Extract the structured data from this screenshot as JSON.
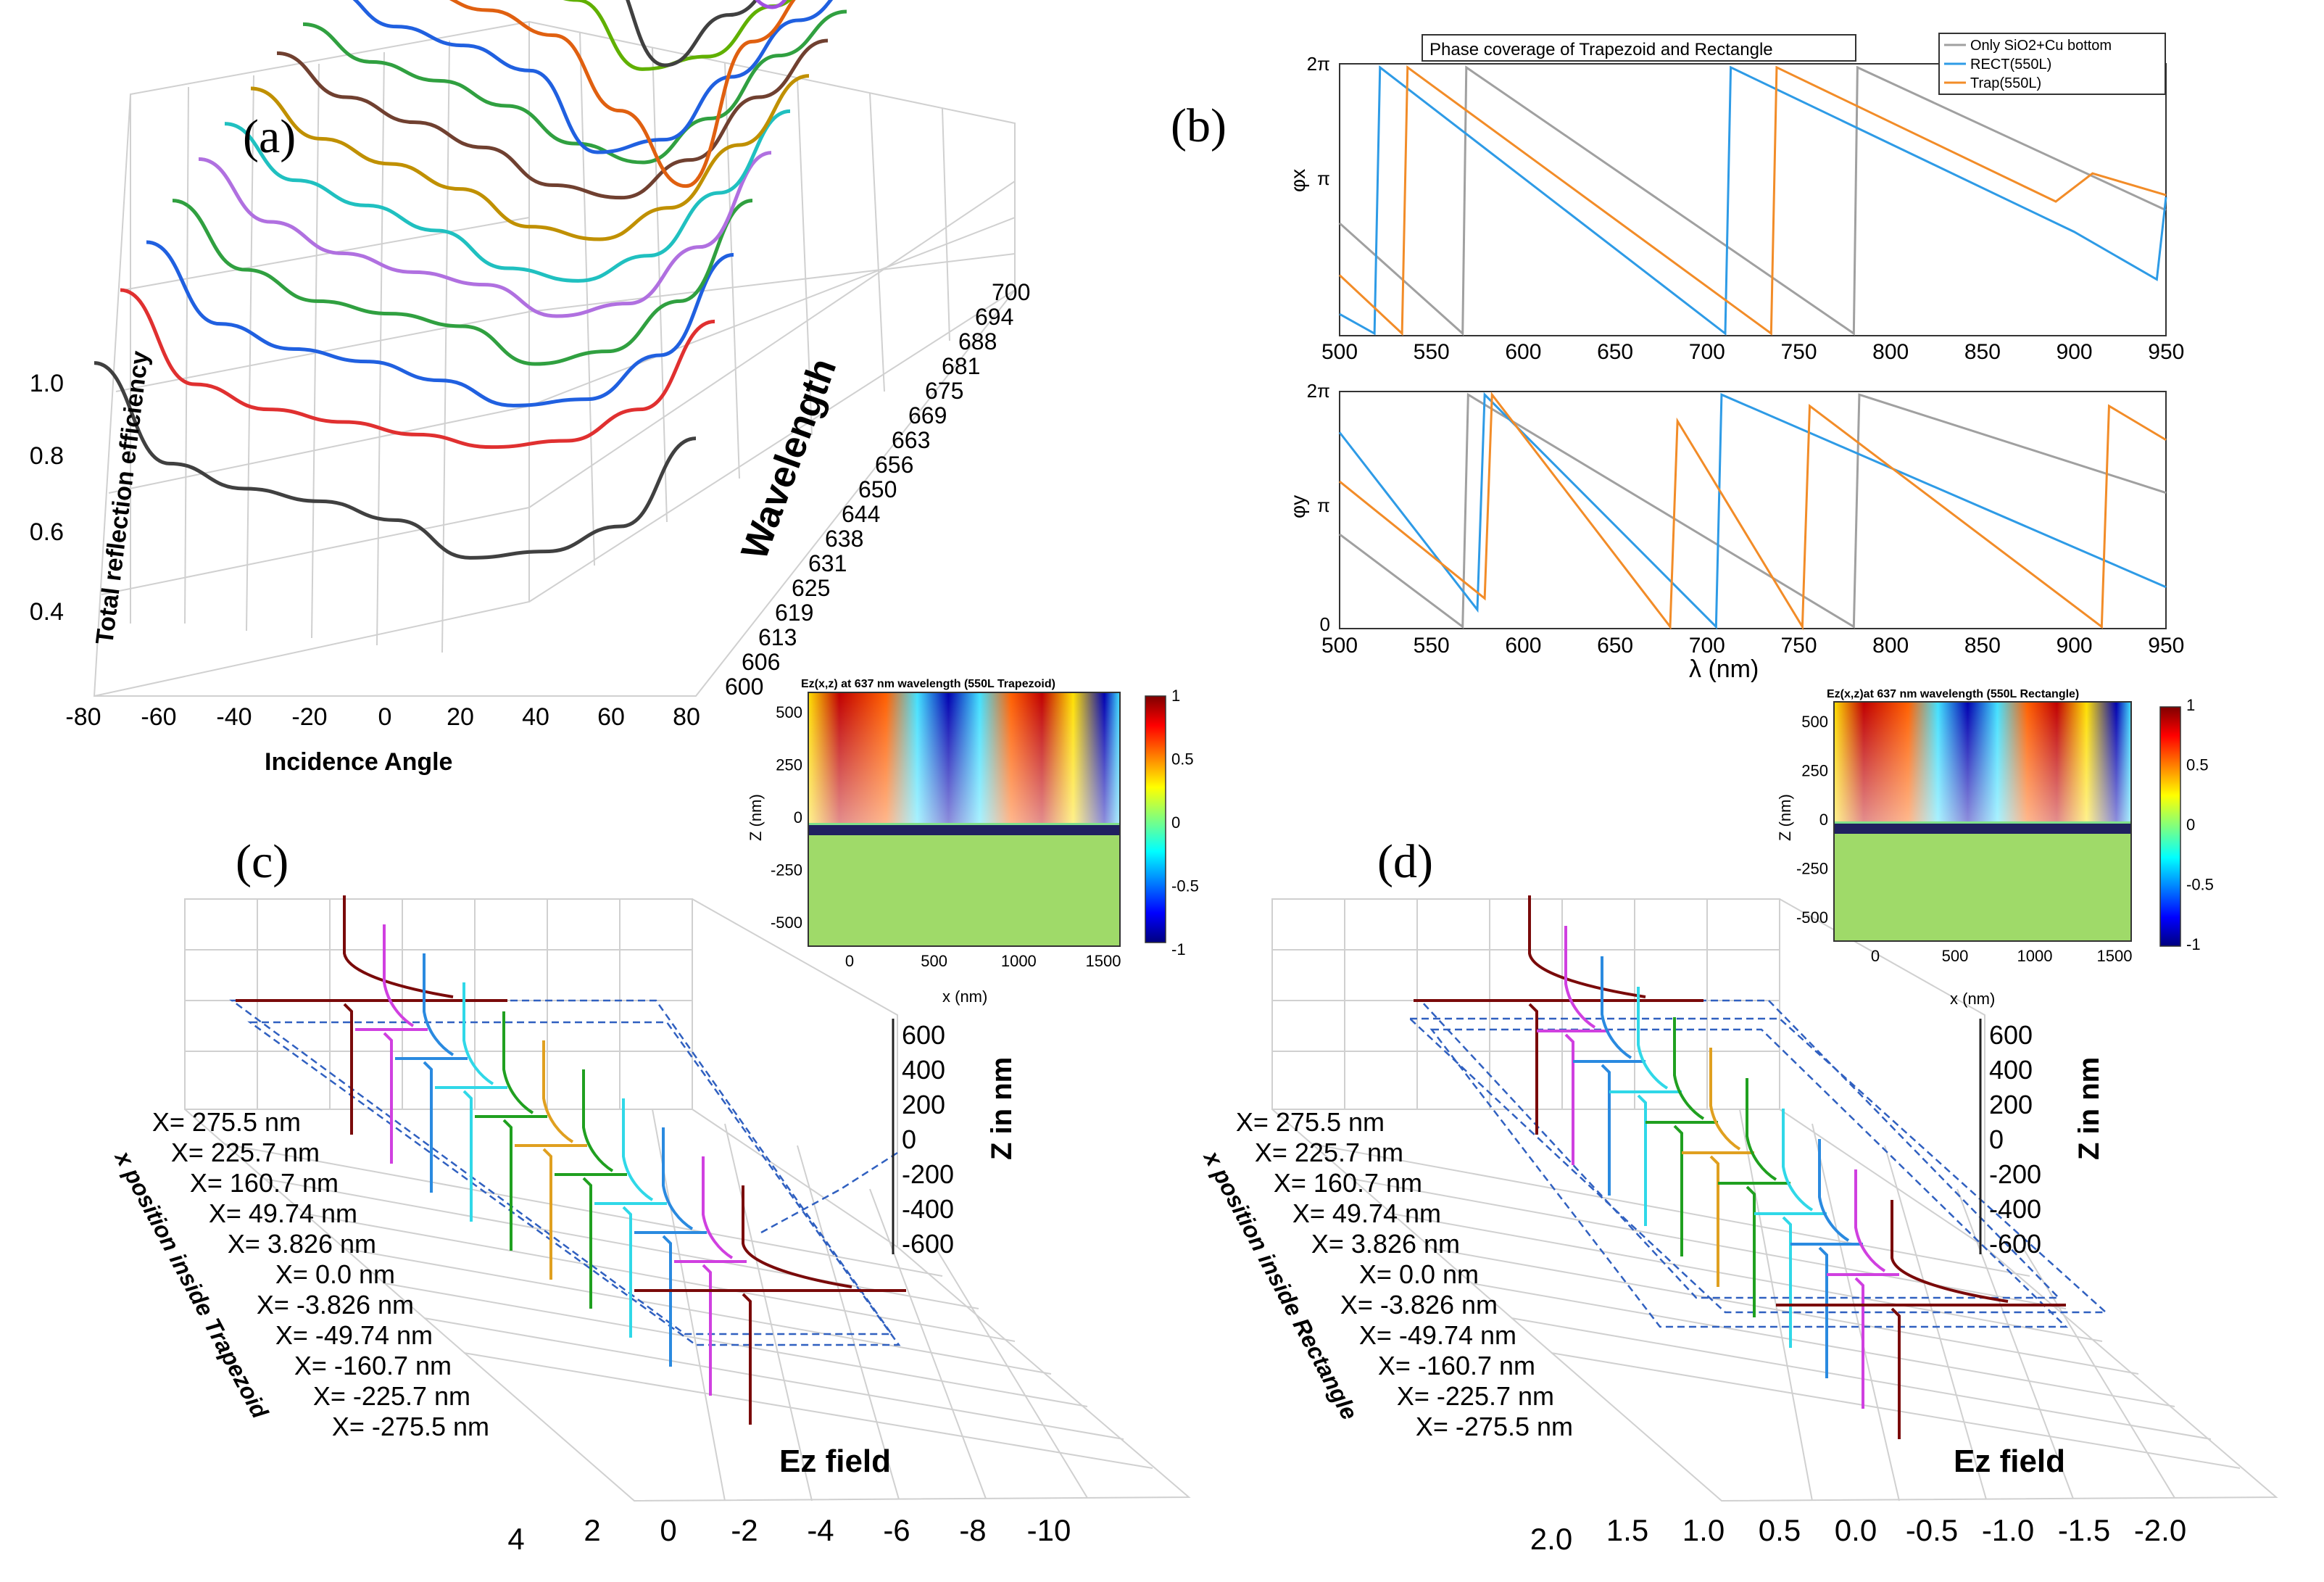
{
  "panels": {
    "a": {
      "label": "(a)",
      "zlabel": "Total reflection efficiency",
      "xlabel": "Incidence Angle",
      "ylabel": "Wavelength",
      "z_ticks": [
        "0.4",
        "0.6",
        "0.8",
        "1.0"
      ],
      "x_ticks": [
        "-80",
        "-60",
        "-40",
        "-20",
        "0",
        "20",
        "40",
        "60",
        "80"
      ],
      "y_ticks": [
        "600",
        "606",
        "613",
        "619",
        "625",
        "631",
        "638",
        "644",
        "650",
        "656",
        "663",
        "669",
        "675",
        "681",
        "688",
        "694",
        "700"
      ]
    },
    "b": {
      "label": "(b)",
      "title": "Phase coverage of Trapezoid and Rectangle",
      "xlabel": "λ (nm)",
      "ylabel_top": "φx",
      "ylabel_bottom": "φy",
      "x_ticks": [
        "500",
        "550",
        "600",
        "650",
        "700",
        "750",
        "800",
        "850",
        "900",
        "950"
      ],
      "y_ticks_top": [
        "π",
        "2π"
      ],
      "y_ticks_bottom": [
        "0",
        "π",
        "2π"
      ],
      "legend": [
        "Only SiO2+Cu bottom",
        "RECT(550L)",
        "Trap(550L)"
      ]
    },
    "c": {
      "label": "(c)",
      "inset_title": "Ez(x,z) at 637 nm wavelength (550L Trapezoid)",
      "zlabel": "Z in nm",
      "xlabel": "Ez field",
      "ylabel": "x position inside Trapezoid",
      "z_ticks": [
        "600",
        "400",
        "200",
        "0",
        "-200",
        "-400",
        "-600"
      ],
      "x_ticks": [
        "4",
        "2",
        "0",
        "-2",
        "-4",
        "-6",
        "-8",
        "-10"
      ],
      "positions": [
        "X= 275.5 nm",
        "X= 225.7 nm",
        "X= 160.7 nm",
        "X= 49.74 nm",
        "X=  3.826 nm",
        "X=  0.0 nm",
        "X= -3.826 nm",
        "X= -49.74 nm",
        "X= -160.7 nm",
        "X= -225.7 nm",
        "X= -275.5 nm"
      ]
    },
    "d": {
      "label": "(d)",
      "inset_title": "Ez(x,z)at 637 nm wavelength (550L Rectangle)",
      "zlabel": "Z in nm",
      "xlabel": "Ez field",
      "ylabel": "x position inside Rectangle",
      "z_ticks": [
        "600",
        "400",
        "200",
        "0",
        "-200",
        "-400",
        "-600"
      ],
      "x_ticks": [
        "2.0",
        "1.5",
        "1.0",
        "0.5",
        "0.0",
        "-0.5",
        "-1.0",
        "-1.5",
        "-2.0"
      ],
      "positions": [
        "X= 275.5 nm",
        "X= 225.7 nm",
        "X= 160.7 nm",
        "X= 49.74 nm",
        "X=  3.826 nm",
        "X=  0.0 nm",
        "X= -3.826 nm",
        "X= -49.74 nm",
        "X= -160.7 nm",
        "X= -225.7 nm",
        "X= -275.5 nm"
      ]
    },
    "insets": {
      "zlabel": "Z (nm)",
      "xlabel": "x (nm)",
      "z_ticks": [
        "500",
        "250",
        "0",
        "-250",
        "-500"
      ],
      "x_ticks": [
        "0",
        "500",
        "1000",
        "1500"
      ],
      "colorbar_ticks": [
        "1",
        "0.5",
        "0",
        "-0.5",
        "-1"
      ]
    }
  },
  "chart_data": [
    {
      "type": "line",
      "panel": "a",
      "title": "",
      "xlabel": "Incidence Angle",
      "ylabel": "Wavelength",
      "zlabel": "Total reflection efficiency",
      "xlim": [
        -80,
        80
      ],
      "zlim": [
        0.4,
        1.0
      ],
      "series": [
        {
          "name": "600",
          "x": [
            -80,
            -60,
            -40,
            -20,
            0,
            20,
            40,
            60,
            80
          ],
          "values": [
            0.78,
            0.62,
            0.58,
            0.56,
            0.53,
            0.47,
            0.48,
            0.52,
            0.66
          ]
        },
        {
          "name": "606",
          "x": [
            -80,
            -60,
            -40,
            -20,
            0,
            20,
            40,
            60,
            80
          ],
          "values": [
            0.85,
            0.7,
            0.66,
            0.64,
            0.62,
            0.6,
            0.61,
            0.66,
            0.8
          ]
        },
        {
          "name": "613",
          "x": [
            -80,
            -60,
            -40,
            -20,
            0,
            20,
            40,
            60,
            80
          ],
          "values": [
            0.88,
            0.75,
            0.71,
            0.69,
            0.66,
            0.62,
            0.63,
            0.7,
            0.86
          ]
        },
        {
          "name": "619",
          "x": [
            -80,
            -60,
            -40,
            -20,
            0,
            20,
            40,
            60,
            80
          ],
          "values": [
            0.9,
            0.79,
            0.74,
            0.72,
            0.7,
            0.64,
            0.66,
            0.74,
            0.9
          ]
        },
        {
          "name": "625",
          "x": [
            -80,
            -60,
            -40,
            -20,
            0,
            20,
            40,
            60,
            80
          ],
          "values": [
            0.92,
            0.82,
            0.77,
            0.74,
            0.72,
            0.67,
            0.69,
            0.78,
            0.93
          ]
        },
        {
          "name": "631",
          "x": [
            -80,
            -60,
            -40,
            -20,
            0,
            20,
            40,
            60,
            80
          ],
          "values": [
            0.93,
            0.84,
            0.8,
            0.76,
            0.7,
            0.68,
            0.72,
            0.82,
            0.95
          ]
        },
        {
          "name": "638",
          "x": [
            -80,
            -60,
            -40,
            -20,
            0,
            20,
            40,
            60,
            80
          ],
          "values": [
            0.94,
            0.86,
            0.82,
            0.78,
            0.72,
            0.7,
            0.75,
            0.85,
            0.96
          ]
        },
        {
          "name": "644",
          "x": [
            -80,
            -60,
            -40,
            -20,
            0,
            20,
            40,
            60,
            80
          ],
          "values": [
            0.95,
            0.88,
            0.84,
            0.8,
            0.74,
            0.72,
            0.78,
            0.88,
            0.97
          ]
        },
        {
          "name": "650",
          "x": [
            -80,
            -60,
            -40,
            -20,
            0,
            20,
            40,
            60,
            80
          ],
          "values": [
            0.95,
            0.89,
            0.86,
            0.82,
            0.76,
            0.73,
            0.8,
            0.9,
            0.97
          ]
        },
        {
          "name": "656",
          "x": [
            -80,
            -60,
            -40,
            -20,
            0,
            20,
            40,
            60,
            80
          ],
          "values": [
            0.96,
            0.9,
            0.87,
            0.83,
            0.7,
            0.72,
            0.82,
            0.91,
            0.98
          ]
        },
        {
          "name": "663",
          "x": [
            -80,
            -60,
            -40,
            -20,
            0,
            20,
            40,
            60,
            80
          ],
          "values": [
            0.96,
            0.91,
            0.88,
            0.84,
            0.72,
            0.6,
            0.83,
            0.92,
            0.98
          ]
        },
        {
          "name": "669",
          "x": [
            -80,
            -60,
            -40,
            -20,
            0,
            20,
            40,
            60,
            80
          ],
          "values": [
            0.97,
            0.92,
            0.89,
            0.85,
            0.74,
            0.76,
            0.84,
            0.93,
            0.98
          ]
        },
        {
          "name": "675",
          "x": [
            -80,
            -60,
            -40,
            -20,
            0,
            20,
            40,
            60,
            80
          ],
          "values": [
            0.97,
            0.93,
            0.9,
            0.86,
            0.7,
            0.78,
            0.85,
            0.94,
            0.99
          ]
        },
        {
          "name": "681",
          "x": [
            -80,
            -60,
            -40,
            -20,
            0,
            20,
            40,
            60,
            80
          ],
          "values": [
            0.97,
            0.93,
            0.91,
            0.87,
            0.8,
            0.79,
            0.86,
            0.94,
            0.99
          ]
        },
        {
          "name": "688",
          "x": [
            -80,
            -60,
            -40,
            -20,
            0,
            20,
            40,
            60,
            80
          ],
          "values": [
            0.98,
            0.94,
            0.92,
            0.88,
            0.82,
            0.7,
            0.87,
            0.95,
            0.99
          ]
        },
        {
          "name": "694",
          "x": [
            -80,
            -60,
            -40,
            -20,
            0,
            20,
            40,
            60,
            80
          ],
          "values": [
            0.98,
            0.95,
            0.93,
            0.89,
            0.84,
            0.82,
            0.88,
            0.95,
            0.99
          ]
        },
        {
          "name": "700",
          "x": [
            -80,
            -60,
            -40,
            -20,
            0,
            20,
            40,
            60,
            80
          ],
          "values": [
            0.98,
            0.95,
            0.94,
            0.9,
            0.86,
            0.8,
            0.89,
            0.96,
            0.99
          ]
        }
      ]
    },
    {
      "type": "line",
      "panel": "b-top",
      "title": "Phase coverage of Trapezoid and Rectangle",
      "xlabel": "λ (nm)",
      "ylabel": "φx",
      "xlim": [
        500,
        950
      ],
      "ylim": [
        0,
        6.283
      ],
      "series": [
        {
          "name": "Only SiO2+Cu bottom",
          "x": [
            500,
            567,
            569,
            780,
            782,
            950
          ],
          "values": [
            2.6,
            0.05,
            6.2,
            0.05,
            6.2,
            2.9
          ]
        },
        {
          "name": "RECT(550L)",
          "x": [
            500,
            519,
            522,
            710,
            713,
            900,
            945,
            950
          ],
          "values": [
            0.5,
            0.05,
            6.2,
            0.05,
            6.2,
            2.4,
            1.3,
            3.2
          ]
        },
        {
          "name": "Trap(550L)",
          "x": [
            500,
            534,
            537,
            735,
            738,
            890,
            910,
            950
          ],
          "values": [
            1.4,
            0.05,
            6.2,
            0.05,
            6.2,
            3.1,
            3.75,
            3.25
          ]
        }
      ]
    },
    {
      "type": "line",
      "panel": "b-bottom",
      "title": "",
      "xlabel": "λ (nm)",
      "ylabel": "φy",
      "xlim": [
        500,
        950
      ],
      "ylim": [
        0,
        6.283
      ],
      "series": [
        {
          "name": "Only SiO2+Cu bottom",
          "x": [
            500,
            567,
            570,
            780,
            783,
            950
          ],
          "values": [
            2.5,
            0.05,
            6.2,
            0.05,
            6.2,
            3.6
          ]
        },
        {
          "name": "RECT(550L)",
          "x": [
            500,
            575,
            579,
            705,
            708,
            950
          ],
          "values": [
            5.2,
            0.5,
            6.2,
            0.05,
            6.2,
            1.1
          ]
        },
        {
          "name": "Trap(550L)",
          "x": [
            500,
            579,
            583,
            680,
            684,
            752,
            756,
            915,
            919,
            950
          ],
          "values": [
            3.9,
            0.8,
            6.2,
            0.05,
            5.5,
            0.05,
            5.9,
            0.05,
            5.9,
            5.0
          ]
        }
      ]
    }
  ]
}
